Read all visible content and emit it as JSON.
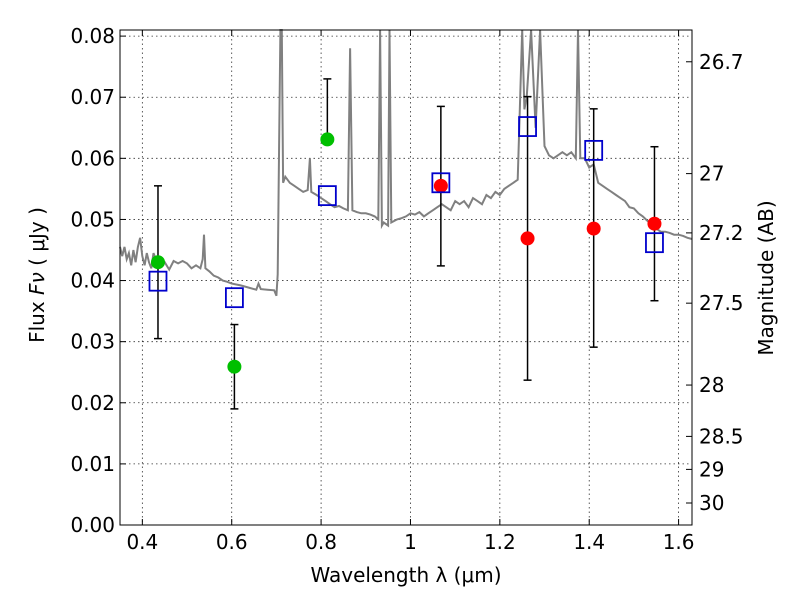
{
  "chart_data": {
    "type": "scatter",
    "x_label_text": "Wavelength  λ (μm)",
    "y_label_prefix": "Flux  ",
    "y_label_symbol": "Fν",
    "y_label_suffix": "  ( μJy )",
    "y2_label": "Magnitude (AB)",
    "xlim": [
      0.35,
      1.63
    ],
    "ylim": [
      0.0,
      0.081
    ],
    "grid": true,
    "x_ticks": [
      0.4,
      0.6,
      0.8,
      1.0,
      1.2,
      1.4,
      1.6
    ],
    "x_tick_labels": [
      "0.4",
      "0.6",
      "0.8",
      "1",
      "1.2",
      "1.4",
      "1.6"
    ],
    "y_ticks": [
      0.0,
      0.01,
      0.02,
      0.03,
      0.04,
      0.05,
      0.06,
      0.07,
      0.08
    ],
    "y_tick_labels": [
      "0.00",
      "0.01",
      "0.02",
      "0.03",
      "0.04",
      "0.05",
      "0.06",
      "0.07",
      "0.08"
    ],
    "y2_ticks": [
      {
        "label": "26.7",
        "flux": 0.0758
      },
      {
        "label": "27",
        "flux": 0.0575
      },
      {
        "label": "27.2",
        "flux": 0.0478
      },
      {
        "label": "27.5",
        "flux": 0.0363
      },
      {
        "label": "28",
        "flux": 0.0229
      },
      {
        "label": "28.5",
        "flux": 0.0145
      },
      {
        "label": "29",
        "flux": 0.0091
      },
      {
        "label": "30",
        "flux": 0.0036
      }
    ],
    "series": [
      {
        "marker": "circle",
        "color": "#00bf00",
        "x": [
          0.435,
          0.606,
          0.814
        ],
        "y": [
          0.043,
          0.0259,
          0.0631
        ],
        "yerr_low": [
          0.0305,
          0.019,
          null
        ],
        "yerr_high": [
          0.0555,
          0.0328,
          0.073
        ]
      },
      {
        "marker": "circle",
        "color": "#ff0000",
        "x": [
          1.068,
          1.262,
          1.41,
          1.546
        ],
        "y": [
          0.0555,
          0.0469,
          0.0485,
          0.0493
        ],
        "yerr_low": [
          0.0424,
          0.0237,
          0.0291,
          0.0367
        ],
        "yerr_high": [
          0.0685,
          0.0701,
          0.0681,
          0.0619
        ]
      },
      {
        "marker": "open-square",
        "color": "#0000cc",
        "x": [
          0.435,
          0.606,
          0.814,
          1.068,
          1.262,
          1.41,
          1.546
        ],
        "y": [
          0.0399,
          0.0372,
          0.0539,
          0.056,
          0.0652,
          0.0613,
          0.0462
        ]
      }
    ],
    "model_spectrum": {
      "color": "#808080",
      "points": [
        [
          0.35,
          0.0455
        ],
        [
          0.355,
          0.044
        ],
        [
          0.36,
          0.0455
        ],
        [
          0.365,
          0.0435
        ],
        [
          0.37,
          0.0445
        ],
        [
          0.375,
          0.0425
        ],
        [
          0.38,
          0.045
        ],
        [
          0.385,
          0.043
        ],
        [
          0.39,
          0.0455
        ],
        [
          0.395,
          0.047
        ],
        [
          0.4,
          0.044
        ],
        [
          0.405,
          0.0425
        ],
        [
          0.41,
          0.0445
        ],
        [
          0.415,
          0.043
        ],
        [
          0.42,
          0.042
        ],
        [
          0.425,
          0.0445
        ],
        [
          0.43,
          0.0435
        ],
        [
          0.44,
          0.0425
        ],
        [
          0.45,
          0.043
        ],
        [
          0.46,
          0.0418
        ],
        [
          0.47,
          0.0432
        ],
        [
          0.48,
          0.0428
        ],
        [
          0.49,
          0.0432
        ],
        [
          0.5,
          0.0428
        ],
        [
          0.51,
          0.042
        ],
        [
          0.52,
          0.0425
        ],
        [
          0.53,
          0.042
        ],
        [
          0.535,
          0.0435
        ],
        [
          0.538,
          0.0475
        ],
        [
          0.541,
          0.042
        ],
        [
          0.55,
          0.0415
        ],
        [
          0.56,
          0.0408
        ],
        [
          0.57,
          0.0405
        ],
        [
          0.58,
          0.04
        ],
        [
          0.59,
          0.0398
        ],
        [
          0.6,
          0.0395
        ],
        [
          0.62,
          0.0392
        ],
        [
          0.64,
          0.0388
        ],
        [
          0.655,
          0.0385
        ],
        [
          0.66,
          0.0395
        ],
        [
          0.665,
          0.0386
        ],
        [
          0.68,
          0.0385
        ],
        [
          0.695,
          0.0384
        ],
        [
          0.7,
          0.0375
        ],
        [
          0.703,
          0.041
        ],
        [
          0.706,
          0.062
        ],
        [
          0.709,
          0.082
        ],
        [
          0.712,
          0.082
        ],
        [
          0.715,
          0.056
        ],
        [
          0.72,
          0.057
        ],
        [
          0.73,
          0.056
        ],
        [
          0.74,
          0.0555
        ],
        [
          0.75,
          0.055
        ],
        [
          0.76,
          0.0545
        ],
        [
          0.77,
          0.0548
        ],
        [
          0.775,
          0.06
        ],
        [
          0.778,
          0.0545
        ],
        [
          0.79,
          0.054
        ],
        [
          0.8,
          0.0535
        ],
        [
          0.81,
          0.053
        ],
        [
          0.82,
          0.0525
        ],
        [
          0.83,
          0.052
        ],
        [
          0.84,
          0.0522
        ],
        [
          0.85,
          0.0518
        ],
        [
          0.86,
          0.0515
        ],
        [
          0.865,
          0.078
        ],
        [
          0.87,
          0.0515
        ],
        [
          0.88,
          0.0512
        ],
        [
          0.89,
          0.051
        ],
        [
          0.9,
          0.051
        ],
        [
          0.91,
          0.0508
        ],
        [
          0.92,
          0.0505
        ],
        [
          0.928,
          0.05
        ],
        [
          0.932,
          0.082
        ],
        [
          0.936,
          0.049
        ],
        [
          0.94,
          0.0495
        ],
        [
          0.95,
          0.049
        ],
        [
          0.953,
          0.082
        ],
        [
          0.957,
          0.0495
        ],
        [
          0.97,
          0.05
        ],
        [
          0.98,
          0.0502
        ],
        [
          0.99,
          0.0505
        ],
        [
          1.0,
          0.051
        ],
        [
          1.01,
          0.0508
        ],
        [
          1.02,
          0.0512
        ],
        [
          1.03,
          0.0505
        ],
        [
          1.04,
          0.051
        ],
        [
          1.05,
          0.0515
        ],
        [
          1.06,
          0.052
        ],
        [
          1.07,
          0.0525
        ],
        [
          1.08,
          0.052
        ],
        [
          1.09,
          0.0515
        ],
        [
          1.1,
          0.053
        ],
        [
          1.11,
          0.0525
        ],
        [
          1.12,
          0.053
        ],
        [
          1.13,
          0.052
        ],
        [
          1.14,
          0.0535
        ],
        [
          1.15,
          0.053
        ],
        [
          1.16,
          0.0525
        ],
        [
          1.17,
          0.054
        ],
        [
          1.18,
          0.0535
        ],
        [
          1.19,
          0.0545
        ],
        [
          1.2,
          0.054
        ],
        [
          1.21,
          0.055
        ],
        [
          1.22,
          0.0555
        ],
        [
          1.23,
          0.056
        ],
        [
          1.24,
          0.0565
        ],
        [
          1.245,
          0.069
        ],
        [
          1.25,
          0.082
        ],
        [
          1.255,
          0.068
        ],
        [
          1.26,
          0.07
        ],
        [
          1.27,
          0.082
        ],
        [
          1.28,
          0.065
        ],
        [
          1.29,
          0.082
        ],
        [
          1.3,
          0.062
        ],
        [
          1.31,
          0.0605
        ],
        [
          1.32,
          0.06
        ],
        [
          1.33,
          0.0605
        ],
        [
          1.34,
          0.061
        ],
        [
          1.35,
          0.0605
        ],
        [
          1.36,
          0.061
        ],
        [
          1.37,
          0.06
        ],
        [
          1.375,
          0.082
        ],
        [
          1.38,
          0.06
        ],
        [
          1.39,
          0.06
        ],
        [
          1.4,
          0.0585
        ],
        [
          1.41,
          0.059
        ],
        [
          1.42,
          0.056
        ],
        [
          1.43,
          0.0555
        ],
        [
          1.44,
          0.055
        ],
        [
          1.45,
          0.0545
        ],
        [
          1.46,
          0.054
        ],
        [
          1.47,
          0.0535
        ],
        [
          1.48,
          0.053
        ],
        [
          1.49,
          0.052
        ],
        [
          1.5,
          0.0518
        ],
        [
          1.51,
          0.051
        ],
        [
          1.52,
          0.0505
        ],
        [
          1.53,
          0.0498
        ],
        [
          1.54,
          0.0492
        ],
        [
          1.55,
          0.0485
        ],
        [
          1.56,
          0.048
        ],
        [
          1.57,
          0.048
        ],
        [
          1.58,
          0.0478
        ],
        [
          1.59,
          0.0475
        ],
        [
          1.6,
          0.0475
        ],
        [
          1.61,
          0.0473
        ],
        [
          1.62,
          0.047
        ],
        [
          1.63,
          0.0468
        ]
      ]
    }
  }
}
